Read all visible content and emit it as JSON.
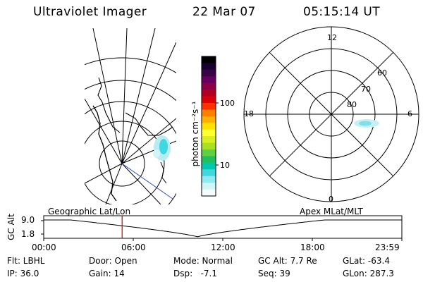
{
  "header": {
    "instrument": "Ultraviolet Imager",
    "date": "22 Mar 07",
    "time": "05:15:14 UT"
  },
  "colorbar": {
    "unit_label": "photon cm⁻²s⁻¹",
    "tick_labels": [
      "100",
      "10"
    ],
    "colors": [
      "#000000",
      "#1a0030",
      "#3a0048",
      "#650060",
      "#8c0048",
      "#b40020",
      "#dc0008",
      "#ff3000",
      "#ff8000",
      "#ffb000",
      "#ffe000",
      "#ffff30",
      "#d8f020",
      "#a8e020",
      "#60d040",
      "#20c060",
      "#00c8b0",
      "#40d8e0",
      "#90e8f0",
      "#d0f4f8",
      "#f4fcfc"
    ]
  },
  "polar_plot": {
    "mlt_labels": [
      "12",
      "6",
      "0",
      "18"
    ],
    "lat_labels": [
      "60",
      "70",
      "80"
    ]
  },
  "timeline": {
    "y_axis_label": "GC Alt",
    "y_ticks": [
      "9.0",
      "1.8"
    ],
    "left_caption": "Geographic Lat/Lon",
    "right_caption": "Apex MLat/MLT",
    "x_ticks": [
      "00:00",
      "06:00",
      "12:00",
      "18:00",
      "23:59"
    ],
    "marker_hour": 5.254,
    "marker_color": "#cc0000"
  },
  "footer": {
    "filter": "Flt: LBHL",
    "door": "Door: Open",
    "mode": "Mode: Normal",
    "gc_alt": "GC Alt: 7.7 Re",
    "glat": "GLat: -63.4",
    "ip": "IP: 36.0",
    "gain": "Gain: 14",
    "dsp": "Dsp:   -7.1",
    "seq": "Seq: 39",
    "glon": "GLon: 287.3"
  }
}
